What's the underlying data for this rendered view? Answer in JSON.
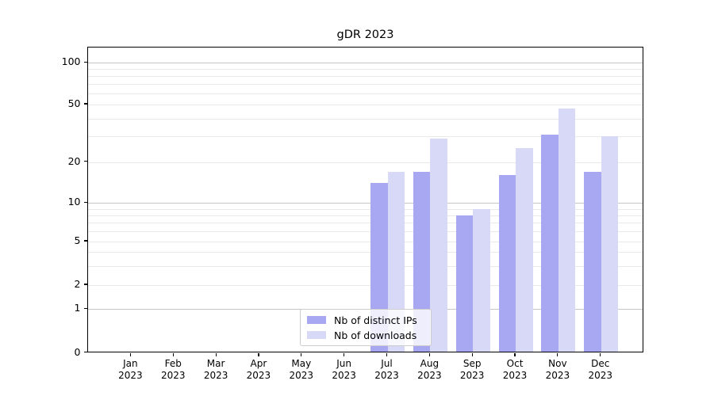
{
  "title": "gDR 2023",
  "chart_data": {
    "type": "bar",
    "title": "gDR 2023",
    "x_months": [
      "Jan",
      "Feb",
      "Mar",
      "Apr",
      "May",
      "Jun",
      "Jul",
      "Aug",
      "Sep",
      "Oct",
      "Nov",
      "Dec"
    ],
    "x_year_label": "2023",
    "series": [
      {
        "name": "Nb of distinct IPs",
        "color": "#a8a8f2",
        "values": [
          0,
          0,
          0,
          0,
          0,
          0,
          14,
          17,
          8,
          16,
          31,
          17
        ]
      },
      {
        "name": "Nb of downloads",
        "color": "#d8d8f7",
        "values": [
          0,
          0,
          0,
          0,
          0,
          0,
          17,
          29,
          9,
          25,
          47,
          30
        ]
      }
    ],
    "yscale": "symlog",
    "ylim": [
      0,
      128
    ],
    "y_tick_values": [
      100,
      50,
      20,
      10,
      5,
      2,
      1,
      0
    ],
    "y_tick_labels": [
      "100",
      "50",
      "20",
      "10",
      "5",
      "2",
      "1",
      "0"
    ],
    "minor_grid_values": [
      2,
      3,
      4,
      5,
      6,
      7,
      8,
      9,
      20,
      30,
      40,
      50,
      60,
      70,
      80,
      90
    ],
    "major_grid_values": [
      1,
      10,
      100
    ],
    "grid_on": true,
    "legend_position": "lower center"
  },
  "legend": {
    "items": [
      {
        "label": "Nb of distinct IPs",
        "color": "#a8a8f2"
      },
      {
        "label": "Nb of downloads",
        "color": "#d8d8f7"
      }
    ]
  },
  "colors": {
    "background": "#ffffff",
    "bar_distinct_ips": "#a8a8f2",
    "bar_downloads": "#d8d8f7",
    "grid_minor": "#e9e9e9",
    "grid_major": "#c6c6c6",
    "spine": "#000000",
    "legend_border": "#cccccc",
    "text": "#000000"
  }
}
